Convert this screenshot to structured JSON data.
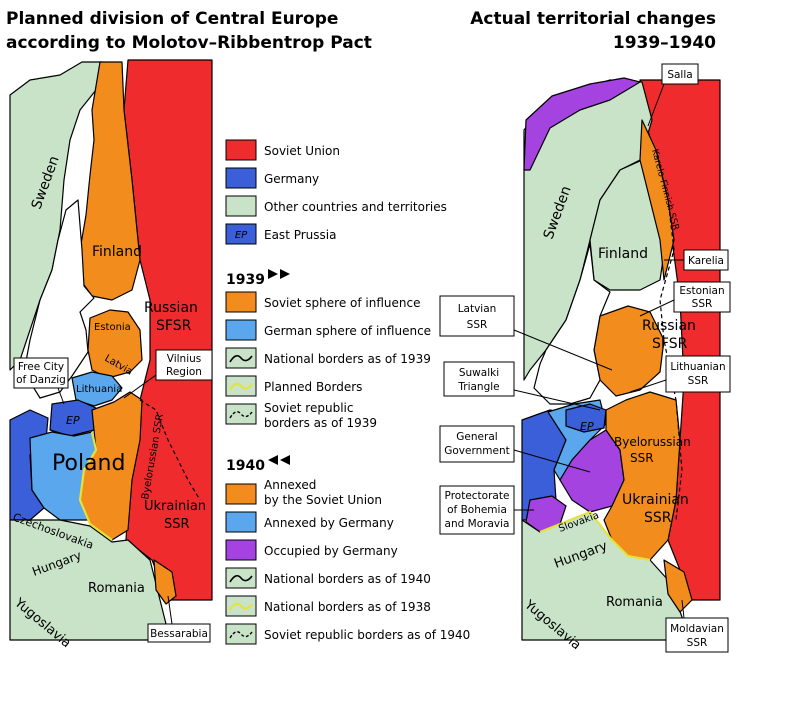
{
  "titles": {
    "left_line1": "Planned division of Central Europe",
    "left_line2": "according to Molotov–Ribbentrop Pact",
    "right_line1": "Actual territorial changes",
    "right_line2": "1939–1940"
  },
  "colors": {
    "soviet": "#ef2b2d",
    "germany": "#3b5fd9",
    "other": "#c8e3c8",
    "east_prussia": "#3b5fd9",
    "soviet_sphere": "#f28c1c",
    "german_sphere": "#5aa7ee",
    "occupied": "#a443e0",
    "planned_border": "#f4f27a",
    "sea": "#ffffff"
  },
  "legend": {
    "general": [
      {
        "label": "Soviet Union",
        "swatch": "soviet"
      },
      {
        "label": "Germany",
        "swatch": "germany"
      },
      {
        "label": "Other countries and territories",
        "swatch": "other"
      },
      {
        "label": "East Prussia",
        "swatch": "east_prussia",
        "swatch_text": "EP"
      }
    ],
    "heading_1939": "1939",
    "items_1939": [
      {
        "label": "Soviet sphere of influence",
        "swatch": "soviet_sphere"
      },
      {
        "label": "German sphere of influence",
        "swatch": "german_sphere"
      },
      {
        "label": "National borders as of 1939",
        "swatch": "border_black"
      },
      {
        "label": "Planned Borders",
        "swatch": "border_yellow"
      },
      {
        "label": "Soviet republic borders as of 1939",
        "line1": "Soviet republic",
        "line2": "borders as of 1939",
        "swatch": "border_dashed"
      }
    ],
    "heading_1940": "1940",
    "items_1940": [
      {
        "label": "Annexed by the Soviet Union",
        "line1": "Annexed",
        "line2": "by the Soviet Union",
        "swatch": "soviet_sphere"
      },
      {
        "label": "Annexed by Germany",
        "swatch": "german_sphere"
      },
      {
        "label": "Occupied by Germany",
        "swatch": "occupied"
      },
      {
        "label": "National borders as of 1940",
        "swatch": "border_black"
      },
      {
        "label": "National borders as of 1938",
        "swatch": "border_yellow"
      },
      {
        "label": "Soviet republic borders as of 1940",
        "swatch": "border_dashed"
      }
    ]
  },
  "left_map": {
    "labels": {
      "sweden": "Sweden",
      "finland": "Finland",
      "russian": "Russian",
      "sfsr": "SFSR",
      "estonia": "Estonia",
      "latvia": "Latvia",
      "lithuania": "Lithuania",
      "ep": "EP",
      "poland": "Poland",
      "byelorussian": "Byelorussian SSR",
      "ukrainian": "Ukrainian",
      "ssr": "SSR",
      "czechoslovakia": "Czechoslovakia",
      "hungary": "Hungary",
      "romania": "Romania",
      "yugoslavia": "Yugoslavia"
    },
    "callouts": {
      "danzig_1": "Free City",
      "danzig_2": "of Danzig",
      "vilnius_1": "Vilnius",
      "vilnius_2": "Region",
      "bessarabia": "Bessarabia"
    }
  },
  "right_map": {
    "labels": {
      "sweden": "Sweden",
      "finland": "Finland",
      "karelo": "Karelo-Finnish SSR",
      "russian": "Russian",
      "sfsr": "SFSR",
      "ep": "EP",
      "byelorussian": "Byelorussian",
      "byelo_ssr": "SSR",
      "ukrainian": "Ukrainian",
      "ukr_ssr": "SSR",
      "slovakia": "Slovakia",
      "hungary": "Hungary",
      "romania": "Romania",
      "yugoslavia": "Yugoslavia"
    },
    "callouts": {
      "salla": "Salla",
      "karelia": "Karelia",
      "estonian_1": "Estonian",
      "estonian_2": "SSR",
      "latvian_1": "Latvian",
      "latvian_2": "SSR",
      "lithuanian_1": "Lithuanian",
      "lithuanian_2": "SSR",
      "suwalki_1": "Suwalki",
      "suwalki_2": "Triangle",
      "general_1": "General",
      "general_2": "Government",
      "protectorate_1": "Protectorate",
      "protectorate_2": "of Bohemia",
      "protectorate_3": "and Moravia",
      "moldavian_1": "Moldavian",
      "moldavian_2": "SSR"
    }
  }
}
